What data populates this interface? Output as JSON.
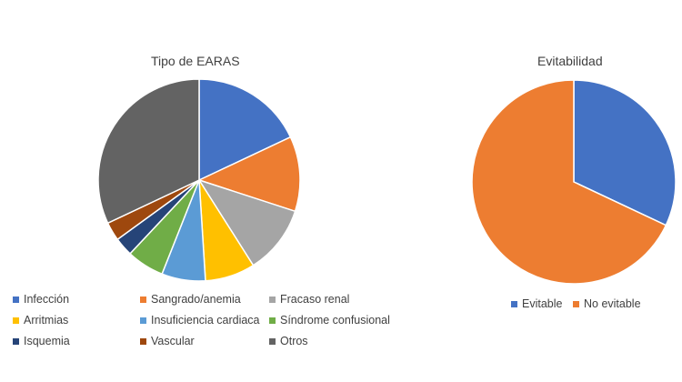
{
  "chart_data": [
    {
      "type": "pie",
      "title": "Tipo de EARAS",
      "categories": [
        "Infección",
        "Sangrado/anemia",
        "Fracaso renal",
        "Arritmias",
        "Insuficiencia cardiaca",
        "Síndrome confusional",
        "Isquemia",
        "Vascular",
        "Otros"
      ],
      "values": [
        18,
        12,
        11,
        8,
        7,
        6,
        3,
        3,
        32
      ],
      "colors": [
        "#4472C4",
        "#ED7D31",
        "#A5A5A5",
        "#FFC000",
        "#5B9BD5",
        "#70AD47",
        "#264478",
        "#9E480E",
        "#636363"
      ],
      "legend_position": "bottom"
    },
    {
      "type": "pie",
      "title": "Evitabilidad",
      "categories": [
        "Evitable",
        "No evitable"
      ],
      "values": [
        32,
        68
      ],
      "colors": [
        "#4472C4",
        "#ED7D31"
      ],
      "legend_position": "bottom"
    }
  ]
}
